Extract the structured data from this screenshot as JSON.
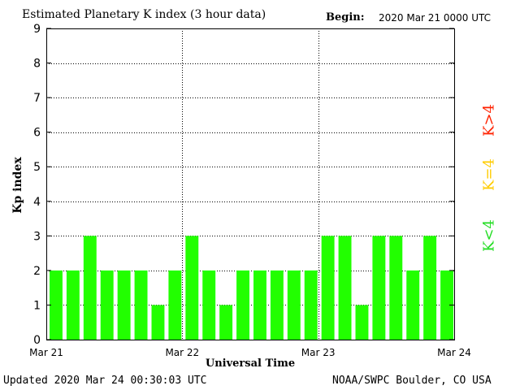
{
  "header": {
    "title": "Estimated Planetary K index (3 hour data)",
    "begin_label": "Begin:",
    "begin_value": "2020 Mar 21 0000 UTC"
  },
  "footer": {
    "updated": "Updated 2020 Mar 24 00:30:03 UTC",
    "credit": "NOAA/SWPC Boulder, CO USA"
  },
  "legend": {
    "items": [
      {
        "label": "K<4",
        "color": "#22dd22"
      },
      {
        "label": "K=4",
        "color": "#ffcc00"
      },
      {
        "label": "K>4",
        "color": "#ff2200"
      }
    ]
  },
  "chart_data": {
    "type": "bar",
    "title": "Estimated Planetary K index (3 hour data)",
    "xlabel": "Universal Time",
    "ylabel": "Kp index",
    "ylim": [
      0,
      9
    ],
    "yticks": [
      0,
      1,
      2,
      3,
      4,
      5,
      6,
      7,
      8,
      9
    ],
    "x_tick_labels": [
      "Mar 21",
      "Mar 22",
      "Mar 23",
      "Mar 24"
    ],
    "interval_hours": 3,
    "grid": true,
    "bar_color": "#22ff00",
    "values": [
      2,
      2,
      3,
      2,
      2,
      2,
      1,
      2,
      3,
      2,
      1,
      2,
      2,
      2,
      2,
      2,
      3,
      3,
      1,
      3,
      3,
      2,
      3,
      2
    ]
  }
}
